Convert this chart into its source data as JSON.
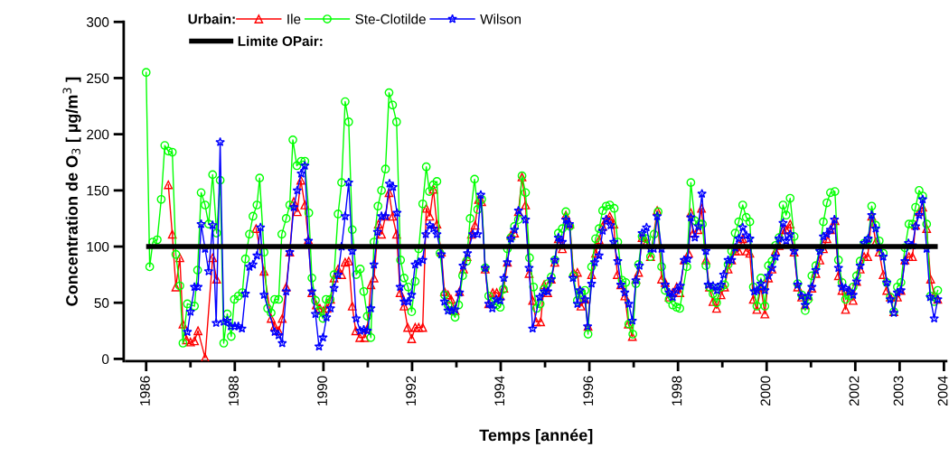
{
  "chart_data": {
    "type": "line",
    "xlabel": "Temps [année]",
    "ylabel": "Concentration de O$_{3}$ [ µg/m$^{3}$ ]",
    "legend_title": "Urbain:",
    "legend": "top left",
    "grid": false,
    "line_style": "solid",
    "xlim": [
      1985.55,
      2004.05
    ],
    "ylim": [
      -2,
      300
    ],
    "yticks": [
      0,
      50,
      100,
      150,
      200,
      250,
      300
    ],
    "xticks": [
      1986,
      {
        "value": 1987,
        "label": null
      },
      1988,
      {
        "value": 1989,
        "label": null
      },
      1990,
      {
        "value": 1991,
        "label": null
      },
      1992,
      {
        "value": 1993,
        "label": null
      },
      1994,
      {
        "value": 1995,
        "label": null
      },
      1996,
      {
        "value": 1997,
        "label": null
      },
      1998,
      {
        "value": 1999,
        "label": null
      },
      2000,
      {
        "value": 2001,
        "label": null
      },
      2002,
      2003,
      2004
    ],
    "ref_lines": [
      {
        "axis": "y",
        "value": 100,
        "label": "Limite OPair:",
        "color": "#000000"
      }
    ],
    "series": [
      {
        "name": "Ile",
        "color": "#ff0000",
        "marker": "triangle",
        "x": [
          1986.5,
          1986.59,
          1986.67,
          1986.76,
          1986.83,
          1986.91,
          1987.0,
          1987.09,
          1987.17,
          1987.33,
          1987.5,
          1987.59,
          1988.0,
          1988.48,
          1988.66,
          1988.82,
          1988.9,
          1988.99,
          1989.07,
          1989.16,
          1989.24,
          1989.33,
          1989.41,
          1989.49,
          1989.58,
          1989.66,
          1989.74,
          1989.84,
          1989.92,
          1990.0,
          1990.08,
          1990.16,
          1990.24,
          1990.33,
          1990.41,
          1990.49,
          1990.57,
          1990.65,
          1990.73,
          1990.82,
          1990.93,
          1990.99,
          1991.07,
          1991.14,
          1991.24,
          1991.31,
          1991.4,
          1991.48,
          1991.56,
          1991.65,
          1991.73,
          1991.82,
          1991.9,
          1991.99,
          1992.07,
          1992.15,
          1992.24,
          1992.32,
          1992.4,
          1992.48,
          1992.56,
          1992.66,
          1992.73,
          1992.81,
          1992.88,
          1992.97,
          1993.07,
          1993.16,
          1993.24,
          1993.34,
          1993.42,
          1993.5,
          1993.57,
          1993.65,
          1993.73,
          1993.82,
          1993.91,
          1993.99,
          1994.07,
          1994.15,
          1994.23,
          1994.31,
          1994.4,
          1994.48,
          1994.56,
          1994.64,
          1994.72,
          1994.8,
          1994.9,
          1994.98,
          1995.06,
          1995.14,
          1995.22,
          1995.3,
          1995.39,
          1995.47,
          1995.56,
          1995.64,
          1995.73,
          1995.81,
          1995.9,
          1995.97,
          1996.05,
          1996.14,
          1996.22,
          1996.3,
          1996.38,
          1996.46,
          1996.55,
          1996.63,
          1996.71,
          1996.8,
          1996.88,
          1996.97,
          1997.05,
          1997.11,
          1997.19,
          1997.29,
          1997.38,
          1997.53,
          1997.63,
          1997.71,
          1997.8,
          1997.88,
          1997.97,
          1998.04,
          1998.14,
          1998.24,
          1998.29,
          1998.34,
          1998.45,
          1998.53,
          1998.63,
          1998.71,
          1998.79,
          1998.87,
          1998.97,
          1999.05,
          1999.13,
          1999.21,
          1999.29,
          1999.37,
          1999.46,
          1999.55,
          1999.62,
          1999.7,
          1999.78,
          1999.87,
          1999.96,
          2000.04,
          2000.12,
          2000.2,
          2000.28,
          2000.37,
          2000.44,
          2000.53,
          2000.62,
          2000.7,
          2000.79,
          2000.87,
          2000.94,
          2001.02,
          2001.11,
          2001.2,
          2001.28,
          2001.36,
          2001.44,
          2001.54,
          2001.62,
          2001.7,
          2001.78,
          2001.87,
          2001.95,
          2002.03,
          2002.11,
          2002.2,
          2002.28,
          2002.37,
          2002.46,
          2002.54,
          2002.63,
          2002.71,
          2002.79,
          2002.87,
          2002.95,
          2003.03,
          2003.12,
          2003.21,
          2003.29,
          2003.36,
          2003.44,
          2003.52,
          2003.61,
          2003.7,
          2003.78,
          2003.86
        ],
        "values": [
          155,
          111,
          64,
          90,
          31,
          17,
          15,
          16,
          25,
          1,
          90,
          71,
          null,
          116,
          78,
          36,
          29,
          25,
          36,
          64,
          95,
          140,
          131,
          159,
          137,
          106,
          59,
          48,
          45,
          43,
          45,
          53,
          72,
          80,
          75,
          86,
          87,
          47,
          25,
          19,
          19,
          27,
          66,
          72,
          120,
          111,
          127,
          148,
          127,
          111,
          59,
          47,
          28,
          18,
          28,
          28,
          28,
          134,
          127,
          151,
          120,
          95,
          60,
          57,
          53,
          43,
          60,
          80,
          91,
          111,
          119,
          142,
          140,
          80,
          49,
          59,
          59,
          56,
          63,
          86,
          110,
          112,
          131,
          162,
          137,
          76,
          52,
          33,
          33,
          66,
          59,
          71,
          86,
          107,
          98,
          128,
          120,
          77,
          77,
          47,
          53,
          29,
          75,
          94,
          106,
          118,
          124,
          127,
          120,
          75,
          66,
          56,
          31,
          20,
          71,
          77,
          108,
          104,
          91,
          132,
          71,
          68,
          55,
          59,
          64,
          59,
          88,
          94,
          130,
          112,
          115,
          134,
          88,
          64,
          51,
          45,
          57,
          64,
          80,
          88,
          96,
          96,
          107,
          96,
          94,
          53,
          44,
          64,
          40,
          72,
          80,
          96,
          101,
          115,
          115,
          120,
          95,
          64,
          55,
          48,
          56,
          63,
          76,
          88,
          98,
          107,
          115,
          123,
          74,
          61,
          44,
          61,
          52,
          69,
          80,
          91,
          91,
          127,
          104,
          95,
          75,
          61,
          55,
          42,
          55,
          61,
          88,
          91,
          91,
          119,
          131,
          135,
          116,
          71,
          57,
          53
        ]
      },
      {
        "name": "Ste-Clotilde",
        "color": "#00ff00",
        "marker": "circle",
        "x": [
          1986.0,
          1986.08,
          1986.15,
          1986.25,
          1986.34,
          1986.42,
          1986.5,
          1986.59,
          1986.67,
          1986.76,
          1986.83,
          1986.93,
          1987.09,
          1987.16,
          1987.24,
          1987.33,
          1987.41,
          1987.5,
          1987.59,
          1987.67,
          1987.75,
          1987.83,
          1987.92,
          1987.99,
          1988.08,
          1988.17,
          1988.24,
          1988.33,
          1988.41,
          1988.5,
          1988.56,
          1988.66,
          1988.74,
          1988.82,
          1988.9,
          1988.99,
          1989.06,
          1989.16,
          1989.24,
          1989.31,
          1989.4,
          1989.5,
          1989.58,
          1989.67,
          1989.74,
          1989.82,
          1989.9,
          1989.99,
          1990.06,
          1990.15,
          1990.24,
          1990.33,
          1990.41,
          1990.49,
          1990.57,
          1990.65,
          1990.74,
          1990.83,
          1990.91,
          1990.99,
          1991.07,
          1991.14,
          1991.23,
          1991.31,
          1991.4,
          1991.48,
          1991.56,
          1991.65,
          1991.74,
          1991.82,
          1991.91,
          1991.99,
          1992.07,
          1992.15,
          1992.24,
          1992.32,
          1992.39,
          1992.48,
          1992.56,
          1992.63,
          1992.73,
          1992.81,
          1992.88,
          1992.97,
          1993.05,
          1993.14,
          1993.23,
          1993.31,
          1993.41,
          1993.48,
          1993.57,
          1993.65,
          1993.73,
          1993.82,
          1993.91,
          1993.99,
          1994.06,
          1994.15,
          1994.23,
          1994.31,
          1994.4,
          1994.48,
          1994.56,
          1994.65,
          1994.74,
          1994.81,
          1994.89,
          1994.98,
          1995.06,
          1995.14,
          1995.22,
          1995.3,
          1995.39,
          1995.47,
          1995.56,
          1995.64,
          1995.73,
          1995.81,
          1995.9,
          1995.97,
          1996.05,
          1996.14,
          1996.22,
          1996.3,
          1996.38,
          1996.46,
          1996.56,
          1996.64,
          1996.74,
          1996.82,
          1996.89,
          1996.98,
          1997.05,
          1997.11,
          1997.19,
          1997.29,
          1997.38,
          1997.46,
          1997.55,
          1997.63,
          1997.71,
          1997.8,
          1997.88,
          1997.97,
          1998.04,
          1998.2,
          1998.29,
          1998.38,
          1998.48,
          1998.55,
          1998.63,
          1998.71,
          1998.79,
          1998.87,
          1998.97,
          1999.05,
          1999.13,
          1999.21,
          1999.29,
          1999.37,
          1999.46,
          1999.54,
          1999.62,
          1999.7,
          1999.78,
          1999.87,
          1999.96,
          2000.04,
          2000.12,
          2000.2,
          2000.28,
          2000.37,
          2000.44,
          2000.53,
          2000.62,
          2000.7,
          2000.79,
          2000.87,
          2000.94,
          2001.02,
          2001.11,
          2001.2,
          2001.28,
          2001.36,
          2001.44,
          2001.54,
          2001.62,
          2001.7,
          2001.78,
          2001.87,
          2001.95,
          2002.03,
          2002.11,
          2002.2,
          2002.29,
          2002.37,
          2002.46,
          2002.54,
          2002.63,
          2002.71,
          2002.79,
          2002.87,
          2002.95,
          2003.03,
          2003.12,
          2003.21,
          2003.29,
          2003.36,
          2003.44,
          2003.52,
          2003.61,
          2003.7,
          2003.78,
          2003.86
        ],
        "values": [
          255,
          82,
          104,
          106,
          142,
          190,
          185,
          184,
          93,
          65,
          14,
          49,
          47,
          79,
          148,
          137,
          120,
          164,
          112,
          159,
          14,
          40,
          20,
          53,
          56,
          59,
          89,
          111,
          127,
          137,
          161,
          95,
          45,
          41,
          53,
          53,
          111,
          125,
          137,
          195,
          172,
          176,
          176,
          130,
          72,
          52,
          43,
          36,
          53,
          53,
          75,
          129,
          157,
          229,
          211,
          115,
          75,
          80,
          60,
          38,
          19,
          104,
          136,
          150,
          169,
          237,
          226,
          211,
          88,
          72,
          64,
          42,
          69,
          98,
          138,
          171,
          149,
          155,
          158,
          94,
          57,
          48,
          43,
          37,
          48,
          74,
          87,
          125,
          160,
          133,
          142,
          81,
          56,
          51,
          48,
          46,
          62,
          98,
          108,
          118,
          124,
          163,
          148,
          90,
          64,
          45,
          49,
          62,
          67,
          73,
          88,
          112,
          116,
          131,
          118,
          74,
          52,
          59,
          61,
          22,
          82,
          107,
          116,
          132,
          136,
          137,
          134,
          104,
          70,
          68,
          31,
          22,
          67,
          84,
          109,
          107,
          91,
          111,
          131,
          82,
          61,
          53,
          48,
          46,
          45,
          82,
          157,
          123,
          120,
          120,
          83,
          64,
          58,
          50,
          64,
          66,
          84,
          96,
          112,
          122,
          137,
          126,
          122,
          64,
          47,
          72,
          47,
          83,
          87,
          101,
          108,
          137,
          128,
          143,
          109,
          67,
          57,
          43,
          53,
          74,
          83,
          98,
          122,
          139,
          148,
          149,
          88,
          68,
          53,
          56,
          64,
          74,
          87,
          103,
          106,
          136,
          119,
          105,
          94,
          68,
          55,
          42,
          64,
          68,
          99,
          120,
          120,
          135,
          150,
          145,
          120,
          56,
          51,
          61
        ]
      },
      {
        "name": "Wilson",
        "color": "#0000ff",
        "marker": "star",
        "x": [
          1986.93,
          1987.0,
          1987.09,
          1987.17,
          1987.24,
          1987.33,
          1987.41,
          1987.5,
          1987.58,
          1987.67,
          1987.75,
          1987.83,
          1987.91,
          1988.0,
          1988.08,
          1988.16,
          1988.24,
          1988.33,
          1988.41,
          1988.5,
          1988.58,
          1988.66,
          1988.9,
          1988.99,
          1989.07,
          1989.16,
          1989.24,
          1989.33,
          1989.41,
          1989.5,
          1989.58,
          1989.66,
          1989.74,
          1989.82,
          1989.9,
          1989.99,
          1990.07,
          1990.16,
          1990.24,
          1990.33,
          1990.41,
          1990.49,
          1990.57,
          1990.65,
          1990.74,
          1990.83,
          1990.91,
          1990.99,
          1991.07,
          1991.14,
          1991.22,
          1991.31,
          1991.4,
          1991.49,
          1991.57,
          1991.66,
          1991.73,
          1991.82,
          1991.91,
          1991.99,
          1992.07,
          1992.15,
          1992.24,
          1992.31,
          1992.4,
          1992.48,
          1992.56,
          1992.66,
          1992.73,
          1992.81,
          1992.89,
          1992.97,
          1993.07,
          1993.15,
          1993.25,
          1993.37,
          1993.48,
          1993.55,
          1993.65,
          1993.73,
          1993.81,
          1993.9,
          1993.99,
          1994.07,
          1994.15,
          1994.23,
          1994.31,
          1994.4,
          1994.56,
          1994.64,
          1994.72,
          1994.88,
          1994.98,
          1995.06,
          1995.14,
          1995.22,
          1995.3,
          1995.39,
          1995.47,
          1995.55,
          1995.63,
          1995.73,
          1995.79,
          1995.9,
          1995.96,
          1996.05,
          1996.12,
          1996.22,
          1996.3,
          1996.38,
          1996.48,
          1996.55,
          1996.64,
          1996.71,
          1996.8,
          1996.89,
          1996.97,
          1997.05,
          1997.13,
          1997.19,
          1997.29,
          1997.38,
          1997.45,
          1997.53,
          1997.63,
          1997.71,
          1997.8,
          1997.88,
          1997.97,
          1998.05,
          1998.14,
          1998.22,
          1998.29,
          1998.38,
          1998.46,
          1998.54,
          1998.63,
          1998.68,
          1998.79,
          1998.88,
          1998.97,
          1999.03,
          1999.13,
          1999.21,
          1999.29,
          1999.37,
          1999.46,
          1999.54,
          1999.62,
          1999.72,
          1999.78,
          1999.87,
          1999.96,
          2000.04,
          2000.12,
          2000.2,
          2000.28,
          2000.37,
          2000.44,
          2000.53,
          2000.62,
          2000.7,
          2000.79,
          2000.87,
          2000.94,
          2001.02,
          2001.11,
          2001.2,
          2001.28,
          2001.36,
          2001.44,
          2001.53,
          2001.62,
          2001.7,
          2001.78,
          2001.87,
          2001.95,
          2002.03,
          2002.11,
          2002.2,
          2002.29,
          2002.37,
          2002.46,
          2002.54,
          2002.63,
          2002.71,
          2002.79,
          2002.87,
          2002.95,
          2003.03,
          2003.12,
          2003.2,
          2003.29,
          2003.36,
          2003.44,
          2003.52,
          2003.61,
          2003.69,
          2003.78,
          2003.86
        ],
        "values": [
          24,
          42,
          64,
          64,
          120,
          98,
          78,
          119,
          32,
          193,
          33,
          34,
          29,
          29,
          29,
          27,
          58,
          82,
          84,
          92,
          117,
          57,
          24,
          21,
          14,
          60,
          95,
          135,
          150,
          165,
          172,
          105,
          60,
          40,
          11,
          19,
          37,
          45,
          63,
          75,
          100,
          127,
          157,
          96,
          36,
          25,
          26,
          25,
          45,
          84,
          113,
          127,
          127,
          156,
          153,
          130,
          64,
          51,
          51,
          57,
          84,
          86,
          88,
          111,
          119,
          116,
          111,
          93,
          51,
          43,
          43,
          44,
          59,
          83,
          94,
          111,
          111,
          146,
          81,
          49,
          45,
          53,
          52,
          72,
          86,
          107,
          115,
          132,
          124,
          81,
          27,
          55,
          60,
          60,
          71,
          88,
          108,
          104,
          124,
          120,
          72,
          49,
          61,
          53,
          29,
          67,
          86,
          92,
          114,
          124,
          119,
          104,
          87,
          66,
          59,
          49,
          34,
          70,
          83,
          112,
          117,
          98,
          98,
          127,
          98,
          66,
          59,
          55,
          61,
          65,
          88,
          89,
          126,
          108,
          118,
          147,
          96,
          66,
          65,
          61,
          66,
          75,
          88,
          88,
          99,
          107,
          117,
          110,
          107,
          60,
          61,
          67,
          61,
          74,
          81,
          91,
          107,
          121,
          105,
          111,
          96,
          66,
          56,
          48,
          56,
          64,
          79,
          96,
          109,
          111,
          115,
          124,
          81,
          64,
          63,
          60,
          57,
          69,
          83,
          103,
          107,
          128,
          116,
          99,
          91,
          68,
          53,
          41,
          59,
          61,
          87,
          103,
          101,
          118,
          128,
          142,
          98,
          55,
          36,
          53
        ]
      }
    ]
  }
}
